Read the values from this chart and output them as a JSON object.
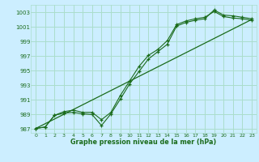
{
  "title": "Graphe pression niveau de la mer (hPa)",
  "background_color": "#cceeff",
  "grid_color": "#aaddcc",
  "line_color": "#1a6b1a",
  "xlim": [
    -0.5,
    23.5
  ],
  "ylim": [
    986.5,
    1004.0
  ],
  "yticks": [
    987,
    989,
    991,
    993,
    995,
    997,
    999,
    1001,
    1003
  ],
  "xticks": [
    0,
    1,
    2,
    3,
    4,
    5,
    6,
    7,
    8,
    9,
    10,
    11,
    12,
    13,
    14,
    15,
    16,
    17,
    18,
    19,
    20,
    21,
    22,
    23
  ],
  "series1_x": [
    0,
    1,
    2,
    3,
    4,
    5,
    6,
    7,
    8,
    9,
    10,
    11,
    12,
    13,
    14,
    15,
    16,
    17,
    18,
    19,
    20,
    21,
    22,
    23
  ],
  "series1_y": [
    987.1,
    987.3,
    988.9,
    989.2,
    989.3,
    989.1,
    989.0,
    987.5,
    989.1,
    991.1,
    993.2,
    994.9,
    996.6,
    997.6,
    998.6,
    1001.1,
    1001.6,
    1001.9,
    1002.1,
    1003.3,
    1002.6,
    1002.5,
    1002.3,
    1002.1
  ],
  "series2_x": [
    0,
    1,
    2,
    3,
    4,
    5,
    6,
    7,
    8,
    9,
    10,
    11,
    12,
    13,
    14,
    15,
    16,
    17,
    18,
    19,
    20,
    21,
    22,
    23
  ],
  "series2_y": [
    987.1,
    987.3,
    988.9,
    989.4,
    989.6,
    989.3,
    989.3,
    988.3,
    989.3,
    991.6,
    993.6,
    995.6,
    997.1,
    997.9,
    999.1,
    1001.3,
    1001.8,
    1002.1,
    1002.3,
    1003.1,
    1002.4,
    1002.2,
    1002.1,
    1001.9
  ],
  "series3_x": [
    0,
    23
  ],
  "series3_y": [
    987.1,
    1002.0
  ]
}
